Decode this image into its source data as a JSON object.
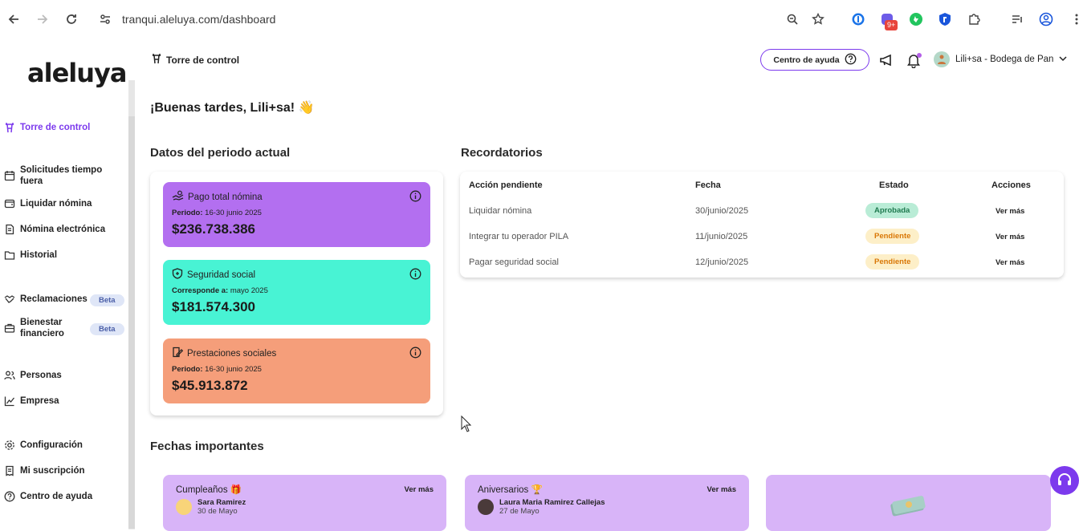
{
  "browser": {
    "url": "tranqui.aleluya.com/dashboard",
    "badge": "9+"
  },
  "brand": {
    "logo_text": "aleluya"
  },
  "header": {
    "section": "Torre de control",
    "help_label": "Centro de ayuda",
    "user_label": "Lili+sa - Bodega de Pan"
  },
  "sidebar": {
    "items": [
      {
        "label": "Torre de control",
        "icon": "tower-icon"
      },
      {
        "label": "Solicitudes tiempo fuera",
        "icon": "calendar-icon"
      },
      {
        "label": "Liquidar nómina",
        "icon": "wallet-icon"
      },
      {
        "label": "Nómina electrónica",
        "icon": "document-icon"
      },
      {
        "label": "Historial",
        "icon": "folder-icon"
      },
      {
        "label": "Reclamaciones",
        "icon": "handshake-icon",
        "badge": "Beta"
      },
      {
        "label": "Bienestar financiero",
        "icon": "briefcase-icon",
        "badge": "Beta"
      },
      {
        "label": "Personas",
        "icon": "people-icon"
      },
      {
        "label": "Empresa",
        "icon": "chart-icon"
      },
      {
        "label": "Configuración",
        "icon": "gear-icon"
      },
      {
        "label": "Mi suscripción",
        "icon": "receipt-icon"
      },
      {
        "label": "Centro de ayuda",
        "icon": "help-icon"
      }
    ]
  },
  "greeting": "¡Buenas tardes, Lili+sa! 👋",
  "period": {
    "title": "Datos del periodo actual",
    "cards": [
      {
        "title": "Pago total nómina",
        "sub_label": "Periodo:",
        "sub_value": "16-30 junio 2025",
        "value": "$236.738.386",
        "color": "#b36ff0"
      },
      {
        "title": "Seguridad social",
        "sub_label": "Corresponde a:",
        "sub_value": "mayo 2025",
        "value": "$181.574.300",
        "color": "#48f3d4"
      },
      {
        "title": "Prestaciones sociales",
        "sub_label": "Periodo:",
        "sub_value": "16-30 junio 2025",
        "value": "$45.913.872",
        "color": "#f59e7a"
      }
    ]
  },
  "reminders": {
    "title": "Recordatorios",
    "headers": [
      "Acción pendiente",
      "Fecha",
      "Estado",
      "Acciones"
    ],
    "rows": [
      {
        "action": "Liquidar nómina",
        "date": "30/junio/2025",
        "status": "Aprobada",
        "link": "Ver más"
      },
      {
        "action": "Integrar tu operador PILA",
        "date": "11/junio/2025",
        "status": "Pendiente",
        "link": "Ver más"
      },
      {
        "action": "Pagar seguridad social",
        "date": "12/junio/2025",
        "status": "Pendiente",
        "link": "Ver más"
      }
    ]
  },
  "important_dates": {
    "title": "Fechas importantes",
    "cards": [
      {
        "title": "Cumpleaños 🎁",
        "more": "Ver más",
        "name": "Sara Ramirez",
        "date": "30 de Mayo"
      },
      {
        "title": "Aniversarios 🏆",
        "more": "Ver más",
        "name": "Laura Maria Ramirez Callejas",
        "date": "27 de Mayo"
      }
    ]
  },
  "colors": {
    "accent": "#7c3aed",
    "approved_bg": "#b9ecd6",
    "approved_fg": "#1f7a4f",
    "pending_bg": "#fdefc8",
    "pending_fg": "#d97706"
  }
}
